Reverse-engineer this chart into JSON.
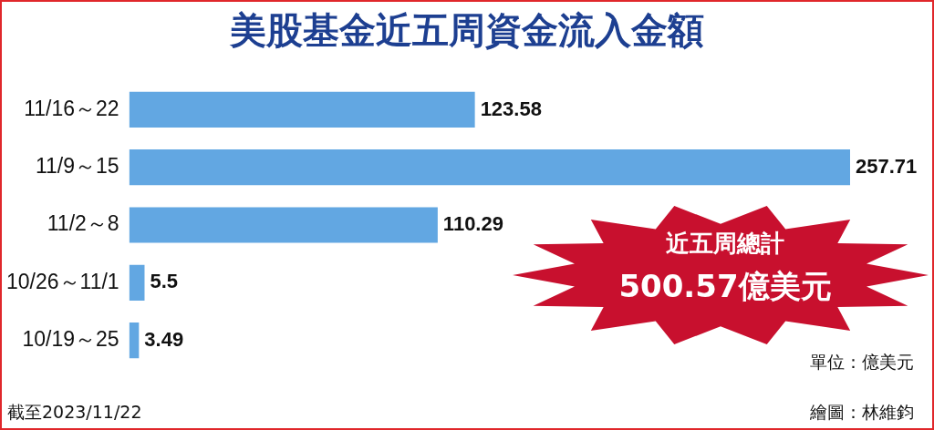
{
  "chart_data": {
    "type": "bar",
    "orientation": "horizontal",
    "title": "美股基金近五周資金流入金額",
    "categories": [
      "11/16～22",
      "11/9～15",
      "11/2～8",
      "10/26～11/1",
      "10/19～25"
    ],
    "values": [
      123.58,
      257.71,
      110.29,
      5.5,
      3.49
    ],
    "color": "#62a7e2",
    "data_labels": true,
    "annotations": [
      "近五周總計",
      "500.57億美元",
      "單位：億美元",
      "截至2023/11/22",
      "繪圖：林維鈞"
    ]
  }
}
